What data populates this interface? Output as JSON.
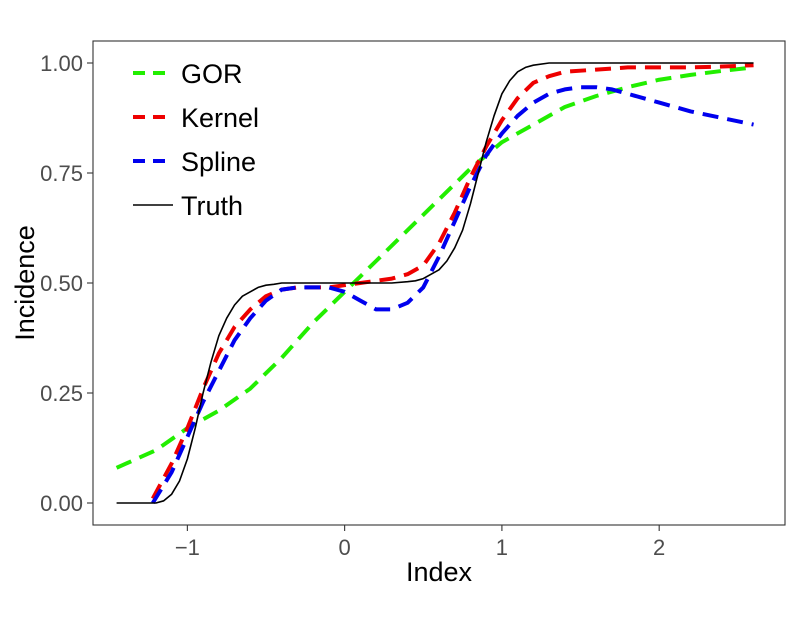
{
  "chart_data": {
    "type": "line",
    "title": "",
    "xlabel": "Index",
    "ylabel": "Incidence",
    "xlim": [
      -1.6,
      2.8
    ],
    "ylim": [
      -0.05,
      1.05
    ],
    "x_ticks": [
      -1,
      0,
      1,
      2
    ],
    "x_tick_labels": [
      "−1",
      "0",
      "1",
      "2"
    ],
    "y_ticks": [
      0,
      0.25,
      0.5,
      0.75,
      1
    ],
    "y_tick_labels": [
      "0.00",
      "0.25",
      "0.50",
      "0.75",
      "1.00"
    ],
    "grid": false,
    "legend_position": "top-left",
    "series": [
      {
        "name": "GOR",
        "color": "#22ee00",
        "dash": "dashed",
        "x": [
          -1.45,
          -1.2,
          -1.0,
          -0.8,
          -0.6,
          -0.4,
          -0.2,
          0.0,
          0.2,
          0.4,
          0.6,
          0.8,
          1.0,
          1.2,
          1.4,
          1.6,
          1.8,
          2.0,
          2.2,
          2.4,
          2.6
        ],
        "y": [
          0.08,
          0.12,
          0.17,
          0.21,
          0.26,
          0.33,
          0.41,
          0.48,
          0.55,
          0.62,
          0.69,
          0.76,
          0.82,
          0.86,
          0.9,
          0.925,
          0.945,
          0.962,
          0.973,
          0.982,
          0.99
        ]
      },
      {
        "name": "Kernel",
        "color": "#ee0000",
        "dash": "dashed",
        "x": [
          -1.22,
          -1.1,
          -1.0,
          -0.9,
          -0.8,
          -0.7,
          -0.6,
          -0.5,
          -0.4,
          -0.3,
          -0.2,
          -0.1,
          0.0,
          0.1,
          0.2,
          0.3,
          0.4,
          0.5,
          0.6,
          0.7,
          0.8,
          0.9,
          1.0,
          1.1,
          1.2,
          1.3,
          1.4,
          1.6,
          1.8,
          2.0,
          2.2,
          2.4,
          2.6
        ],
        "y": [
          0.01,
          0.09,
          0.17,
          0.26,
          0.34,
          0.4,
          0.44,
          0.47,
          0.485,
          0.49,
          0.49,
          0.49,
          0.495,
          0.5,
          0.505,
          0.51,
          0.52,
          0.54,
          0.59,
          0.66,
          0.74,
          0.81,
          0.87,
          0.92,
          0.955,
          0.97,
          0.98,
          0.985,
          0.99,
          0.99,
          0.99,
          0.992,
          0.995
        ]
      },
      {
        "name": "Spline",
        "color": "#0000ee",
        "dash": "dashed",
        "x": [
          -1.22,
          -1.1,
          -1.0,
          -0.9,
          -0.8,
          -0.7,
          -0.6,
          -0.5,
          -0.4,
          -0.3,
          -0.2,
          -0.1,
          0.0,
          0.1,
          0.2,
          0.3,
          0.4,
          0.5,
          0.6,
          0.7,
          0.8,
          0.9,
          1.0,
          1.1,
          1.2,
          1.3,
          1.4,
          1.5,
          1.6,
          1.7,
          1.8,
          2.0,
          2.2,
          2.4,
          2.6
        ],
        "y": [
          0.0,
          0.07,
          0.15,
          0.23,
          0.3,
          0.37,
          0.42,
          0.46,
          0.485,
          0.49,
          0.49,
          0.49,
          0.48,
          0.46,
          0.44,
          0.44,
          0.455,
          0.49,
          0.56,
          0.64,
          0.72,
          0.79,
          0.84,
          0.88,
          0.91,
          0.93,
          0.94,
          0.945,
          0.945,
          0.94,
          0.93,
          0.91,
          0.89,
          0.875,
          0.86
        ]
      },
      {
        "name": "Truth",
        "color": "#000000",
        "dash": "solid",
        "x": [
          -1.45,
          -1.2,
          -1.15,
          -1.1,
          -1.05,
          -1.0,
          -0.95,
          -0.9,
          -0.85,
          -0.8,
          -0.75,
          -0.7,
          -0.65,
          -0.6,
          -0.55,
          -0.5,
          -0.45,
          -0.4,
          -0.3,
          -0.2,
          -0.1,
          0.0,
          0.1,
          0.2,
          0.3,
          0.4,
          0.45,
          0.5,
          0.55,
          0.6,
          0.65,
          0.7,
          0.75,
          0.8,
          0.85,
          0.9,
          0.95,
          1.0,
          1.05,
          1.1,
          1.15,
          1.2,
          1.3,
          1.4,
          1.6,
          2.0,
          2.4,
          2.6
        ],
        "y": [
          0.0,
          0.0,
          0.005,
          0.02,
          0.05,
          0.1,
          0.17,
          0.25,
          0.32,
          0.38,
          0.42,
          0.45,
          0.47,
          0.48,
          0.49,
          0.495,
          0.497,
          0.5,
          0.5,
          0.5,
          0.5,
          0.5,
          0.5,
          0.5,
          0.5,
          0.503,
          0.505,
          0.51,
          0.52,
          0.53,
          0.55,
          0.58,
          0.62,
          0.68,
          0.75,
          0.82,
          0.88,
          0.93,
          0.96,
          0.98,
          0.99,
          0.995,
          1.0,
          1.0,
          1.0,
          1.0,
          1.0,
          1.0
        ]
      }
    ]
  },
  "colors": {
    "panel_border": "#333333",
    "tick": "#333333",
    "tick_text": "#4d4d4d"
  }
}
